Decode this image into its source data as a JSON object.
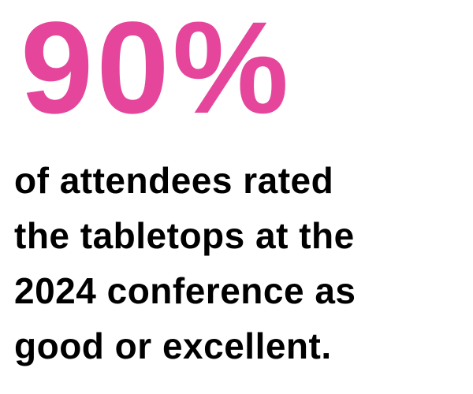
{
  "stat": "90%",
  "lines": [
    "of attendees rated",
    "the tabletops at the",
    "2024 conference as",
    "good or excellent."
  ]
}
